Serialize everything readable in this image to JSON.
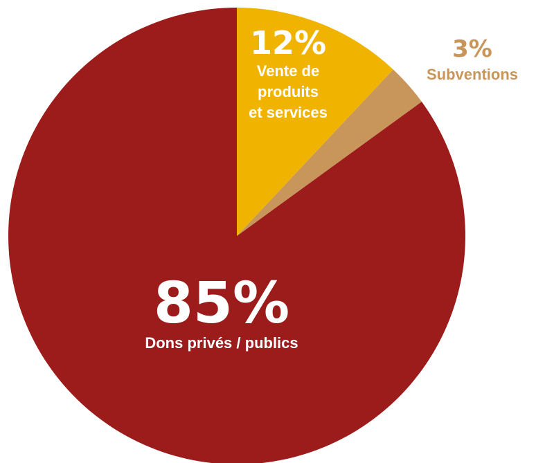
{
  "chart_data": {
    "type": "pie",
    "slices": [
      {
        "label_lines": [
          "Vente de",
          "produits",
          "et services"
        ],
        "value": 12,
        "value_label": "12%",
        "color": "#F0B400"
      },
      {
        "label_lines": [
          "Subventions"
        ],
        "value": 3,
        "value_label": "3%",
        "color": "#C8955A"
      },
      {
        "label_lines": [
          "Dons privés / publics"
        ],
        "value": 85,
        "value_label": "85%",
        "color": "#9B1C1A"
      }
    ],
    "start_angle": "12 o'clock",
    "direction": "clockwise",
    "label_colors": {
      "inside": "#FFFFFF",
      "outside": "#C8955A"
    }
  }
}
